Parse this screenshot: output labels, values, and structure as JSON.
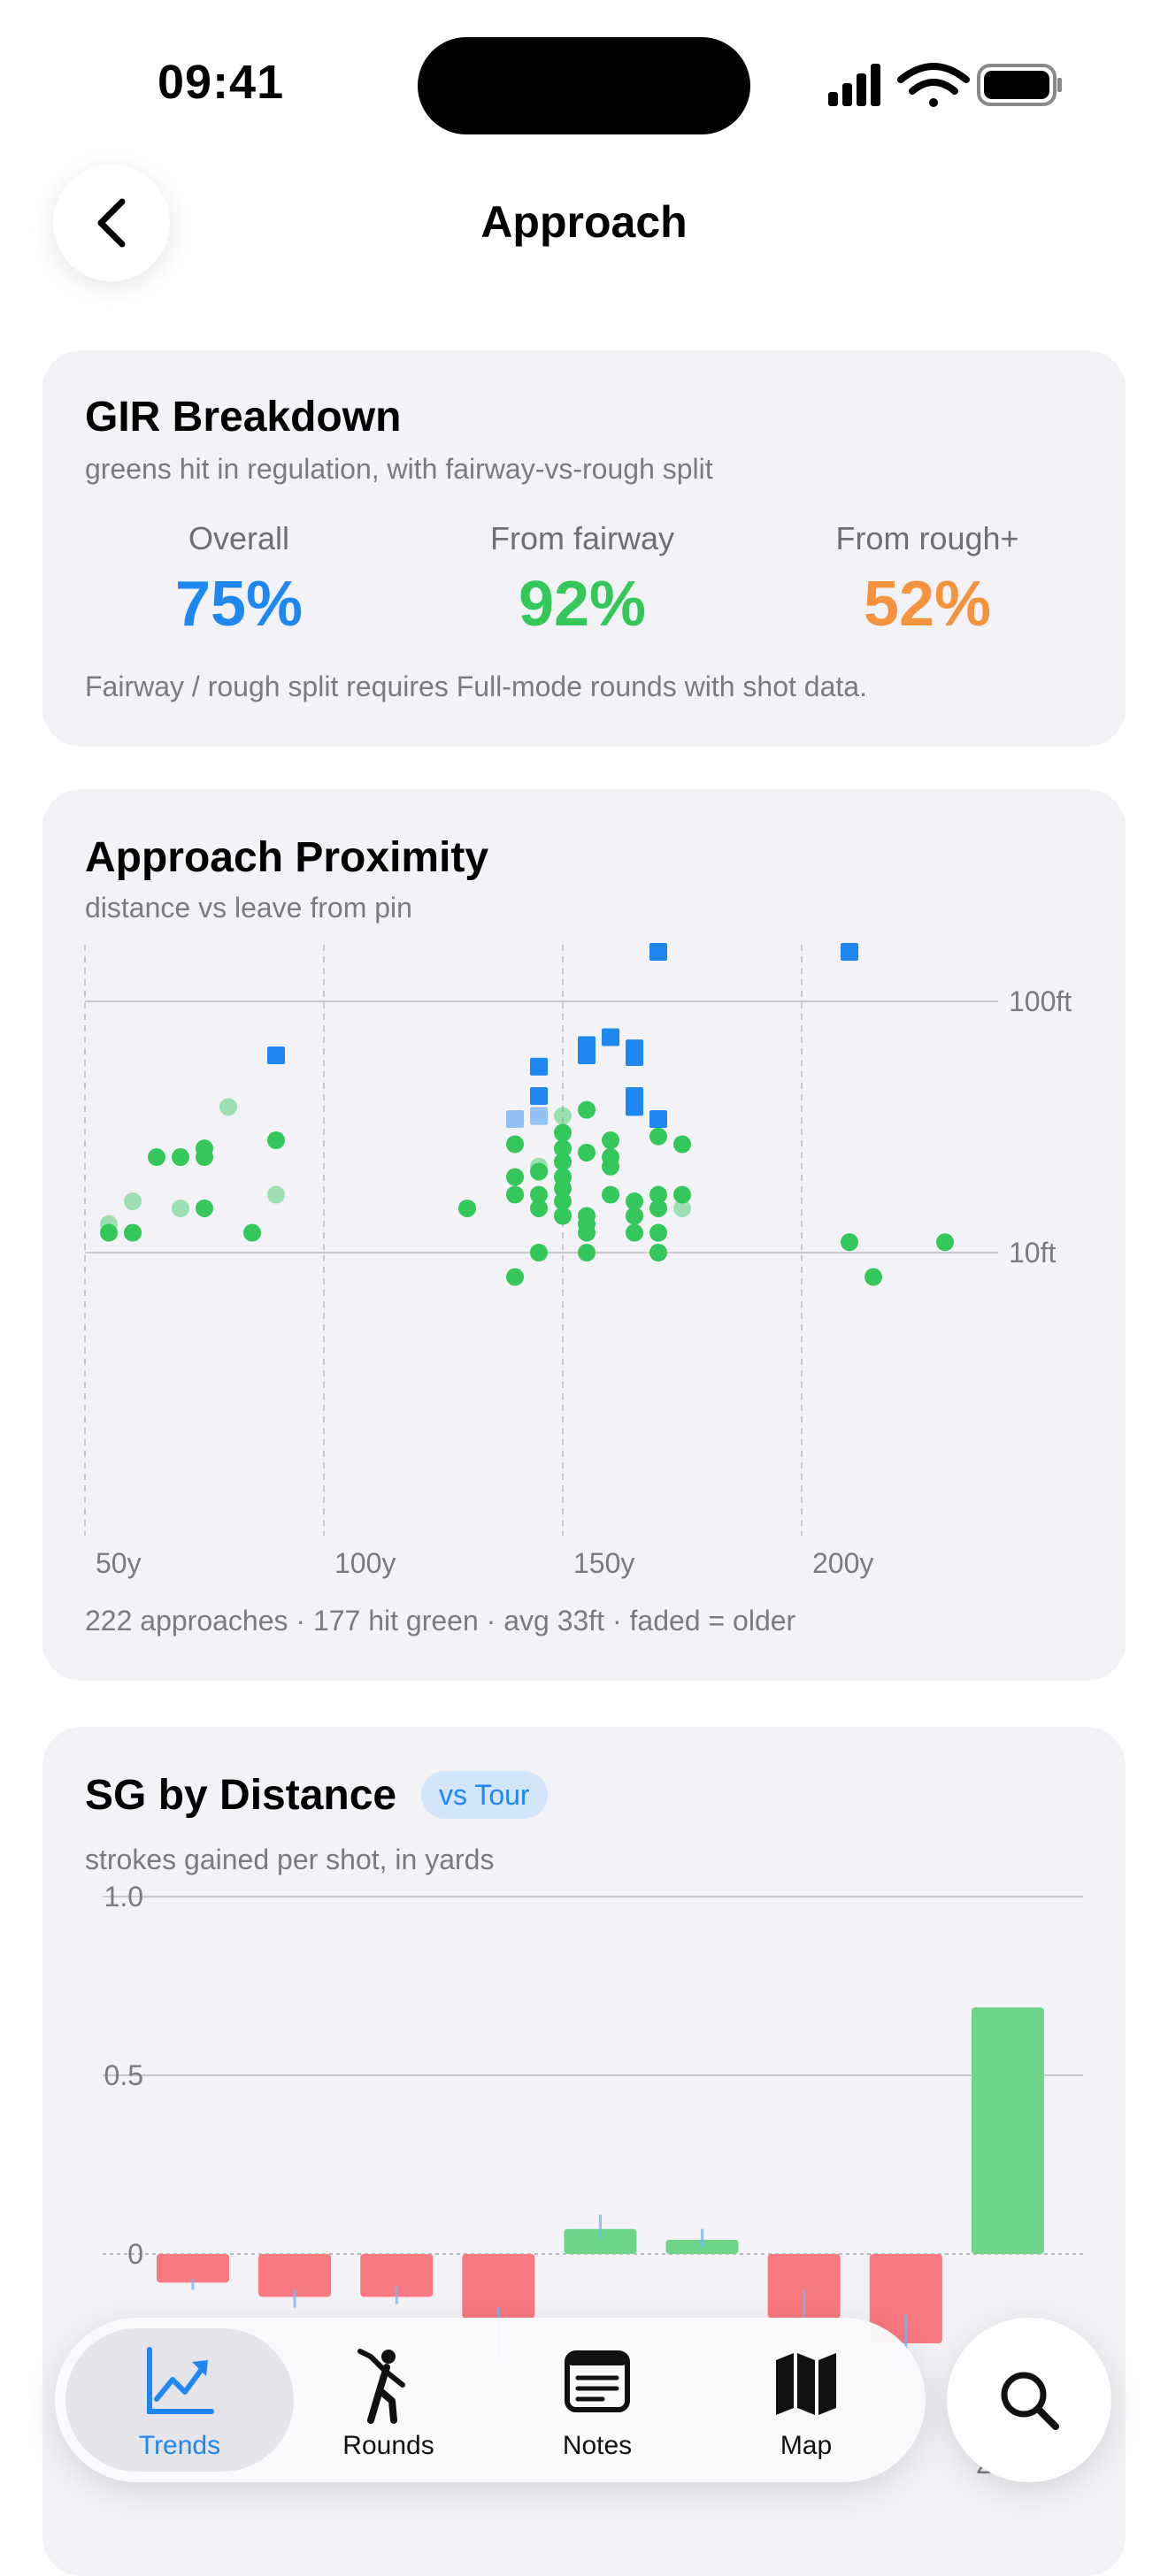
{
  "status_bar": {
    "time": "09:41"
  },
  "header": {
    "title": "Approach",
    "back_icon": "chevron-left-icon"
  },
  "gir_card": {
    "title": "GIR Breakdown",
    "subtitle": "greens hit in regulation, with fairway-vs-rough split",
    "stats": [
      {
        "label": "Overall",
        "value": "75%",
        "color": "#1e88f0"
      },
      {
        "label": "From fairway",
        "value": "92%",
        "color": "#34c759"
      },
      {
        "label": "From rough+",
        "value": "52%",
        "color": "#f5923e"
      }
    ],
    "footnote": "Fairway / rough split requires Full-mode rounds with shot data."
  },
  "proximity_card": {
    "title": "Approach Proximity",
    "subtitle": "distance vs leave from pin",
    "footnote": "222 approaches · 177 hit green · avg 33ft · faded = older"
  },
  "sg_card": {
    "title": "SG by Distance",
    "badge": "vs Tour",
    "subtitle": "strokes gained per shot, in yards"
  },
  "chart_data": [
    {
      "type": "scatter",
      "x_tick_labels": [
        "50y",
        "100y",
        "150y",
        "200y"
      ],
      "y_tick_labels": [
        "100ft",
        "10ft"
      ],
      "xlim": [
        50,
        238
      ],
      "y_scale": "log",
      "ylim": [
        1,
        180
      ],
      "grid": true,
      "colors": {
        "hit": "#34c759",
        "miss": "#1e88f0"
      },
      "series": [
        {
          "points": [
            [
              55,
              13,
              0.5
            ],
            [
              55,
              12,
              1
            ],
            [
              60,
              16,
              0.5
            ],
            [
              60,
              12,
              1
            ],
            [
              65,
              24,
              1
            ],
            [
              70,
              24,
              1
            ],
            [
              75,
              26,
              1
            ],
            [
              75,
              24,
              1
            ],
            [
              70,
              15,
              0.5
            ],
            [
              75,
              15,
              1
            ],
            [
              80,
              38,
              0.5
            ],
            [
              85,
              12,
              1
            ],
            [
              90,
              28,
              1
            ],
            [
              90,
              17,
              0.5
            ],
            [
              130,
              15,
              1
            ],
            [
              140,
              27,
              1
            ],
            [
              140,
              20,
              1
            ],
            [
              140,
              17,
              1
            ],
            [
              140,
              8,
              1
            ],
            [
              145,
              21,
              1
            ],
            [
              145,
              17,
              1
            ],
            [
              145,
              15,
              1
            ],
            [
              145,
              10,
              1
            ],
            [
              145,
              22,
              0.5
            ],
            [
              150,
              30,
              1
            ],
            [
              150,
              26,
              1
            ],
            [
              150,
              23,
              1
            ],
            [
              150,
              20,
              1
            ],
            [
              150,
              18,
              1
            ],
            [
              150,
              16,
              1
            ],
            [
              150,
              14,
              1
            ],
            [
              150,
              35,
              0.5
            ],
            [
              155,
              37,
              1
            ],
            [
              155,
              25,
              1
            ],
            [
              155,
              14,
              1
            ],
            [
              155,
              13,
              1
            ],
            [
              155,
              12,
              1
            ],
            [
              155,
              10,
              1
            ],
            [
              160,
              28,
              1
            ],
            [
              160,
              24,
              1
            ],
            [
              160,
              22,
              1
            ],
            [
              160,
              17,
              1
            ],
            [
              165,
              16,
              1
            ],
            [
              165,
              14,
              1
            ],
            [
              165,
              12,
              1
            ],
            [
              165,
              38,
              0.5
            ],
            [
              170,
              29,
              1
            ],
            [
              170,
              17,
              1
            ],
            [
              170,
              15,
              1
            ],
            [
              170,
              12,
              1
            ],
            [
              170,
              10,
              1
            ],
            [
              175,
              27,
              1
            ],
            [
              175,
              17,
              1
            ],
            [
              175,
              15,
              0.5
            ],
            [
              210,
              11,
              1
            ],
            [
              215,
              8,
              1
            ],
            [
              230,
              11,
              1
            ]
          ]
        },
        {
          "points": [
            [
              90,
              61,
              1
            ],
            [
              145,
              55,
              1
            ],
            [
              145,
              42,
              1
            ],
            [
              145,
              35,
              0.5
            ],
            [
              140,
              34,
              0.5
            ],
            [
              155,
              67,
              1
            ],
            [
              155,
              61,
              1
            ],
            [
              160,
              72,
              1
            ],
            [
              165,
              65,
              1
            ],
            [
              165,
              60,
              1
            ],
            [
              165,
              42,
              1
            ],
            [
              165,
              38,
              1
            ],
            [
              170,
              34,
              1
            ],
            [
              170,
              215,
              1
            ],
            [
              170,
              195,
              0.5
            ],
            [
              210,
              160,
              1
            ]
          ]
        }
      ]
    },
    {
      "type": "bar",
      "y_tick_labels": [
        "1.0",
        "0.5",
        "0"
      ],
      "ylim": [
        -0.3,
        1.0
      ],
      "x_tick_labels": [
        "200+"
      ],
      "colors": {
        "positive": "#6ed489",
        "negative": "#f8797f",
        "error": "#79b4f5"
      },
      "values": [
        -0.08,
        -0.12,
        -0.12,
        -0.18,
        0.07,
        0.04,
        -0.18,
        -0.25,
        0.69
      ],
      "error_bars": [
        [
          -0.1,
          -0.07
        ],
        [
          -0.15,
          -0.1
        ],
        [
          -0.14,
          -0.09
        ],
        [
          -0.3,
          -0.15
        ],
        [
          0.04,
          0.11
        ],
        [
          0.02,
          0.07
        ],
        [
          -0.2,
          -0.1
        ],
        [
          -0.33,
          -0.17
        ],
        [
          0.69,
          0.69
        ]
      ]
    }
  ],
  "tab_bar": {
    "tabs": [
      {
        "label": "Trends",
        "icon": "chart-line-icon",
        "active": true
      },
      {
        "label": "Rounds",
        "icon": "golfer-icon",
        "active": false
      },
      {
        "label": "Notes",
        "icon": "notes-icon",
        "active": false
      },
      {
        "label": "Map",
        "icon": "map-icon",
        "active": false
      }
    ],
    "search_icon": "magnifier-icon"
  }
}
